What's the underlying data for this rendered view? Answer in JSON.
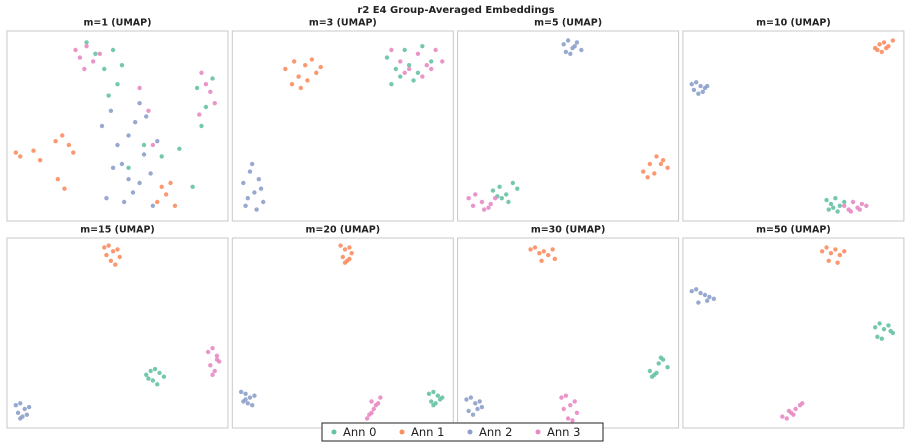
{
  "title": "r2 E4 Group-Averaged Embeddings",
  "chart_data": [
    {
      "type": "scatter",
      "title": "m=1 (UMAP)",
      "xlim": [
        0,
        1
      ],
      "ylim": [
        1,
        0
      ],
      "series": [
        {
          "name": "Ann 0",
          "color": "#66c2a5",
          "x": [
            0.36,
            0.4,
            0.44,
            0.48,
            0.5,
            0.52,
            0.86,
            0.9,
            0.93,
            0.88,
            0.62,
            0.7,
            0.78,
            0.46,
            0.55,
            0.84
          ],
          "y": [
            0.06,
            0.12,
            0.2,
            0.1,
            0.28,
            0.18,
            0.3,
            0.4,
            0.25,
            0.5,
            0.6,
            0.66,
            0.62,
            0.34,
            0.72,
            0.82
          ]
        },
        {
          "name": "Ann 1",
          "color": "#fc8d62",
          "x": [
            0.04,
            0.06,
            0.12,
            0.15,
            0.22,
            0.25,
            0.28,
            0.3,
            0.23,
            0.26,
            0.68,
            0.72,
            0.76,
            0.7,
            0.74
          ],
          "y": [
            0.64,
            0.66,
            0.63,
            0.68,
            0.58,
            0.55,
            0.6,
            0.64,
            0.78,
            0.83,
            0.9,
            0.86,
            0.92,
            0.82,
            0.8
          ]
        },
        {
          "name": "Ann 2",
          "color": "#8da0cb",
          "x": [
            0.43,
            0.47,
            0.5,
            0.52,
            0.55,
            0.58,
            0.6,
            0.62,
            0.65,
            0.68,
            0.45,
            0.53,
            0.57,
            0.63,
            0.66,
            0.48,
            0.55,
            0.6
          ],
          "y": [
            0.5,
            0.42,
            0.6,
            0.7,
            0.55,
            0.48,
            0.8,
            0.65,
            0.75,
            0.58,
            0.88,
            0.9,
            0.85,
            0.45,
            0.92,
            0.72,
            0.78,
            0.38
          ]
        },
        {
          "name": "Ann 3",
          "color": "#e78ac3",
          "x": [
            0.31,
            0.33,
            0.36,
            0.39,
            0.42,
            0.35,
            0.88,
            0.9,
            0.92,
            0.94,
            0.6,
            0.64,
            0.66,
            0.87
          ],
          "y": [
            0.1,
            0.14,
            0.08,
            0.16,
            0.12,
            0.2,
            0.22,
            0.28,
            0.32,
            0.38,
            0.3,
            0.42,
            0.6,
            0.44
          ]
        }
      ]
    },
    {
      "type": "scatter",
      "title": "m=3 (UMAP)",
      "xlim": [
        0,
        1
      ],
      "ylim": [
        1,
        0
      ],
      "series": [
        {
          "name": "Ann 0",
          "color": "#66c2a5",
          "x": [
            0.7,
            0.74,
            0.78,
            0.82,
            0.72,
            0.8,
            0.86,
            0.76,
            0.84,
            0.9
          ],
          "y": [
            0.14,
            0.2,
            0.1,
            0.26,
            0.28,
            0.18,
            0.08,
            0.24,
            0.22,
            0.16
          ]
        },
        {
          "name": "Ann 1",
          "color": "#fc8d62",
          "x": [
            0.24,
            0.28,
            0.3,
            0.33,
            0.36,
            0.38,
            0.4,
            0.27,
            0.34,
            0.31
          ],
          "y": [
            0.2,
            0.16,
            0.24,
            0.18,
            0.15,
            0.22,
            0.19,
            0.28,
            0.26,
            0.3
          ]
        },
        {
          "name": "Ann 2",
          "color": "#8da0cb",
          "x": [
            0.05,
            0.08,
            0.1,
            0.12,
            0.14,
            0.07,
            0.11,
            0.09,
            0.13,
            0.06
          ],
          "y": [
            0.8,
            0.74,
            0.85,
            0.78,
            0.9,
            0.88,
            0.94,
            0.7,
            0.83,
            0.92
          ]
        },
        {
          "name": "Ann 3",
          "color": "#e78ac3",
          "x": [
            0.72,
            0.76,
            0.8,
            0.84,
            0.88,
            0.92,
            0.95,
            0.78,
            0.86,
            0.9
          ],
          "y": [
            0.1,
            0.16,
            0.2,
            0.12,
            0.18,
            0.1,
            0.16,
            0.22,
            0.24,
            0.2
          ]
        }
      ]
    },
    {
      "type": "scatter",
      "title": "m=5 (UMAP)",
      "xlim": [
        0,
        1
      ],
      "ylim": [
        1,
        0
      ],
      "series": [
        {
          "name": "Ann 0",
          "color": "#66c2a5",
          "x": [
            0.16,
            0.19,
            0.22,
            0.25,
            0.27,
            0.2,
            0.23,
            0.18
          ],
          "y": [
            0.84,
            0.82,
            0.86,
            0.8,
            0.83,
            0.88,
            0.9,
            0.87
          ]
        },
        {
          "name": "Ann 1",
          "color": "#fc8d62",
          "x": [
            0.84,
            0.87,
            0.9,
            0.93,
            0.95,
            0.86,
            0.89,
            0.92
          ],
          "y": [
            0.74,
            0.7,
            0.66,
            0.68,
            0.72,
            0.77,
            0.75,
            0.7
          ]
        },
        {
          "name": "Ann 2",
          "color": "#8da0cb",
          "x": [
            0.48,
            0.5,
            0.52,
            0.54,
            0.56,
            0.51,
            0.53,
            0.49
          ],
          "y": [
            0.07,
            0.05,
            0.09,
            0.06,
            0.1,
            0.12,
            0.08,
            0.11
          ]
        },
        {
          "name": "Ann 3",
          "color": "#e78ac3",
          "x": [
            0.05,
            0.08,
            0.11,
            0.14,
            0.17,
            0.07,
            0.12,
            0.15
          ],
          "y": [
            0.88,
            0.86,
            0.9,
            0.93,
            0.88,
            0.92,
            0.94,
            0.91
          ]
        }
      ]
    },
    {
      "type": "scatter",
      "title": "m=10 (UMAP)",
      "xlim": [
        0,
        1
      ],
      "ylim": [
        1,
        0
      ],
      "series": [
        {
          "name": "Ann 0",
          "color": "#66c2a5",
          "x": [
            0.65,
            0.67,
            0.69,
            0.71,
            0.73,
            0.66,
            0.7,
            0.68
          ],
          "y": [
            0.89,
            0.91,
            0.88,
            0.92,
            0.9,
            0.94,
            0.95,
            0.93
          ]
        },
        {
          "name": "Ann 1",
          "color": "#fc8d62",
          "x": [
            0.87,
            0.89,
            0.91,
            0.93,
            0.95,
            0.9,
            0.88,
            0.92
          ],
          "y": [
            0.09,
            0.07,
            0.06,
            0.08,
            0.05,
            0.11,
            0.1,
            0.09
          ]
        },
        {
          "name": "Ann 2",
          "color": "#8da0cb",
          "x": [
            0.04,
            0.06,
            0.08,
            0.1,
            0.05,
            0.07,
            0.09,
            0.11
          ],
          "y": [
            0.28,
            0.27,
            0.29,
            0.3,
            0.31,
            0.33,
            0.32,
            0.29
          ]
        },
        {
          "name": "Ann 3",
          "color": "#e78ac3",
          "x": [
            0.73,
            0.75,
            0.77,
            0.79,
            0.81,
            0.83,
            0.76,
            0.8
          ],
          "y": [
            0.92,
            0.94,
            0.9,
            0.93,
            0.91,
            0.92,
            0.95,
            0.94
          ]
        }
      ]
    },
    {
      "type": "scatter",
      "title": "m=15 (UMAP)",
      "xlim": [
        0,
        1
      ],
      "ylim": [
        1,
        0
      ],
      "series": [
        {
          "name": "Ann 0",
          "color": "#66c2a5",
          "x": [
            0.63,
            0.65,
            0.67,
            0.69,
            0.71,
            0.66,
            0.68,
            0.64
          ],
          "y": [
            0.72,
            0.7,
            0.69,
            0.71,
            0.73,
            0.75,
            0.77,
            0.74
          ]
        },
        {
          "name": "Ann 1",
          "color": "#fc8d62",
          "x": [
            0.44,
            0.46,
            0.48,
            0.5,
            0.51,
            0.47,
            0.49,
            0.45
          ],
          "y": [
            0.05,
            0.04,
            0.07,
            0.06,
            0.1,
            0.12,
            0.14,
            0.09
          ]
        },
        {
          "name": "Ann 2",
          "color": "#8da0cb",
          "x": [
            0.04,
            0.06,
            0.08,
            0.1,
            0.05,
            0.07,
            0.09,
            0.06
          ],
          "y": [
            0.88,
            0.87,
            0.9,
            0.89,
            0.92,
            0.94,
            0.93,
            0.95
          ]
        },
        {
          "name": "Ann 3",
          "color": "#e78ac3",
          "x": [
            0.91,
            0.93,
            0.95,
            0.96,
            0.92,
            0.94,
            0.93,
            0.95
          ],
          "y": [
            0.6,
            0.58,
            0.62,
            0.65,
            0.67,
            0.7,
            0.72,
            0.64
          ]
        }
      ]
    },
    {
      "type": "scatter",
      "title": "m=20 (UMAP)",
      "xlim": [
        0,
        1
      ],
      "ylim": [
        1,
        0
      ],
      "series": [
        {
          "name": "Ann 0",
          "color": "#66c2a5",
          "x": [
            0.89,
            0.91,
            0.93,
            0.95,
            0.9,
            0.92,
            0.94,
            0.91
          ],
          "y": [
            0.82,
            0.81,
            0.83,
            0.84,
            0.86,
            0.87,
            0.85,
            0.88
          ]
        },
        {
          "name": "Ann 1",
          "color": "#fc8d62",
          "x": [
            0.49,
            0.51,
            0.53,
            0.54,
            0.5,
            0.52,
            0.51,
            0.53
          ],
          "y": [
            0.04,
            0.06,
            0.05,
            0.08,
            0.1,
            0.12,
            0.13,
            0.11
          ]
        },
        {
          "name": "Ann 2",
          "color": "#8da0cb",
          "x": [
            0.04,
            0.06,
            0.08,
            0.1,
            0.05,
            0.07,
            0.09,
            0.06
          ],
          "y": [
            0.81,
            0.82,
            0.84,
            0.83,
            0.86,
            0.87,
            0.88,
            0.85
          ]
        },
        {
          "name": "Ann 3",
          "color": "#e78ac3",
          "x": [
            0.61,
            0.63,
            0.65,
            0.67,
            0.62,
            0.64,
            0.63,
            0.66
          ],
          "y": [
            0.95,
            0.92,
            0.88,
            0.84,
            0.93,
            0.9,
            0.86,
            0.87
          ]
        }
      ]
    },
    {
      "type": "scatter",
      "title": "m=30 (UMAP)",
      "xlim": [
        0,
        1
      ],
      "ylim": [
        1,
        0
      ],
      "series": [
        {
          "name": "Ann 0",
          "color": "#66c2a5",
          "x": [
            0.87,
            0.89,
            0.91,
            0.93,
            0.95,
            0.88,
            0.9,
            0.92
          ],
          "y": [
            0.7,
            0.72,
            0.66,
            0.64,
            0.68,
            0.73,
            0.71,
            0.63
          ]
        },
        {
          "name": "Ann 1",
          "color": "#fc8d62",
          "x": [
            0.33,
            0.35,
            0.37,
            0.39,
            0.41,
            0.43,
            0.44,
            0.38
          ],
          "y": [
            0.06,
            0.05,
            0.08,
            0.07,
            0.09,
            0.06,
            0.11,
            0.12
          ]
        },
        {
          "name": "Ann 2",
          "color": "#8da0cb",
          "x": [
            0.04,
            0.06,
            0.08,
            0.1,
            0.11,
            0.05,
            0.07,
            0.09
          ],
          "y": [
            0.85,
            0.84,
            0.87,
            0.86,
            0.89,
            0.91,
            0.93,
            0.9
          ]
        },
        {
          "name": "Ann 3",
          "color": "#e78ac3",
          "x": [
            0.47,
            0.49,
            0.51,
            0.53,
            0.54,
            0.48,
            0.5,
            0.52
          ],
          "y": [
            0.84,
            0.83,
            0.88,
            0.86,
            0.92,
            0.9,
            0.95,
            0.96
          ]
        }
      ]
    },
    {
      "type": "scatter",
      "title": "m=50 (UMAP)",
      "xlim": [
        0,
        1
      ],
      "ylim": [
        1,
        0
      ],
      "series": [
        {
          "name": "Ann 0",
          "color": "#66c2a5",
          "x": [
            0.87,
            0.89,
            0.91,
            0.93,
            0.95,
            0.88,
            0.9,
            0.94
          ],
          "y": [
            0.47,
            0.45,
            0.48,
            0.46,
            0.5,
            0.52,
            0.53,
            0.49
          ]
        },
        {
          "name": "Ann 1",
          "color": "#fc8d62",
          "x": [
            0.63,
            0.65,
            0.67,
            0.69,
            0.71,
            0.73,
            0.66,
            0.7
          ],
          "y": [
            0.07,
            0.05,
            0.08,
            0.06,
            0.09,
            0.07,
            0.12,
            0.13
          ]
        },
        {
          "name": "Ann 2",
          "color": "#8da0cb",
          "x": [
            0.04,
            0.06,
            0.08,
            0.1,
            0.12,
            0.14,
            0.07,
            0.11
          ],
          "y": [
            0.28,
            0.27,
            0.29,
            0.3,
            0.31,
            0.32,
            0.34,
            0.33
          ]
        },
        {
          "name": "Ann 3",
          "color": "#e78ac3",
          "x": [
            0.45,
            0.47,
            0.49,
            0.51,
            0.53,
            0.54,
            0.48,
            0.5
          ],
          "y": [
            0.94,
            0.95,
            0.92,
            0.9,
            0.88,
            0.87,
            0.91,
            0.93
          ]
        }
      ]
    }
  ]
}
